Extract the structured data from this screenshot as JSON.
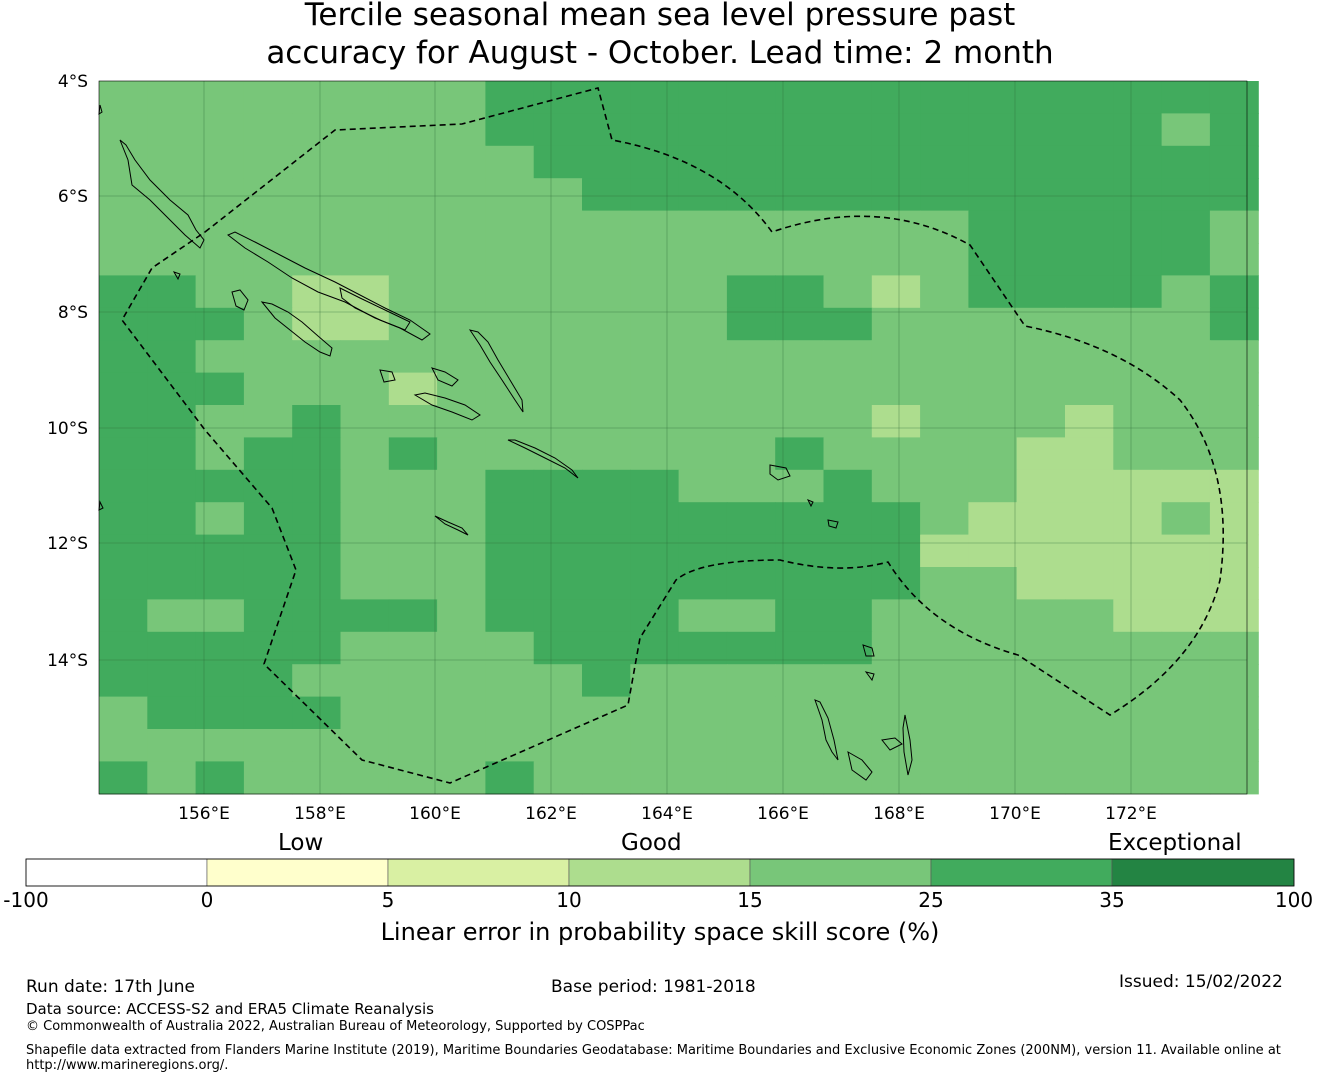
{
  "title": {
    "line1": "Tercile seasonal mean sea level pressure past",
    "line2": "accuracy for August - October. Lead time: 2 month"
  },
  "map": {
    "lat_labels": [
      "4°S",
      "6°S",
      "8°S",
      "10°S",
      "12°S",
      "14°S"
    ],
    "lon_labels": [
      "156°E",
      "158°E",
      "160°E",
      "162°E",
      "164°E",
      "166°E",
      "168°E",
      "170°E",
      "172°E"
    ],
    "skill_colors": {
      "5-10": "#d9f0a3",
      "10-15": "#addd8e",
      "15-25": "#78c679",
      "25-35": "#41ab5d",
      "35-100": "#238443"
    },
    "boundary_style": "dashed",
    "coastline_color": "#000000"
  },
  "colorbar": {
    "category_labels": {
      "low": "Low",
      "good": "Good",
      "exceptional": "Exceptional"
    },
    "ticks": [
      "-100",
      "0",
      "5",
      "10",
      "15",
      "25",
      "35",
      "100"
    ],
    "colors": [
      "#ffffff",
      "#ffffcc",
      "#d9f0a3",
      "#addd8e",
      "#78c679",
      "#41ab5d",
      "#238443"
    ],
    "title": "Linear error in probability space skill score (%)"
  },
  "footer": {
    "run_date": "Run date: 17th June",
    "base_period": "Base period: 1981-2018",
    "issued": "Issued: 15/02/2022",
    "data_source": "Data source: ACCESS-S2 and ERA5 Climate Reanalysis",
    "copyright": "© Commonwealth of Australia 2022, Australian Bureau of Meteorology, Supported by COSPPac",
    "shapefile_line1": "Shapefile data extracted from Flanders Marine Institute (2019), Maritime Boundaries Geodatabase: Maritime Boundaries and Exclusive Economic Zones (200NM), version 11. Available online at",
    "shapefile_line2": "http://www.marineregions.org/."
  }
}
